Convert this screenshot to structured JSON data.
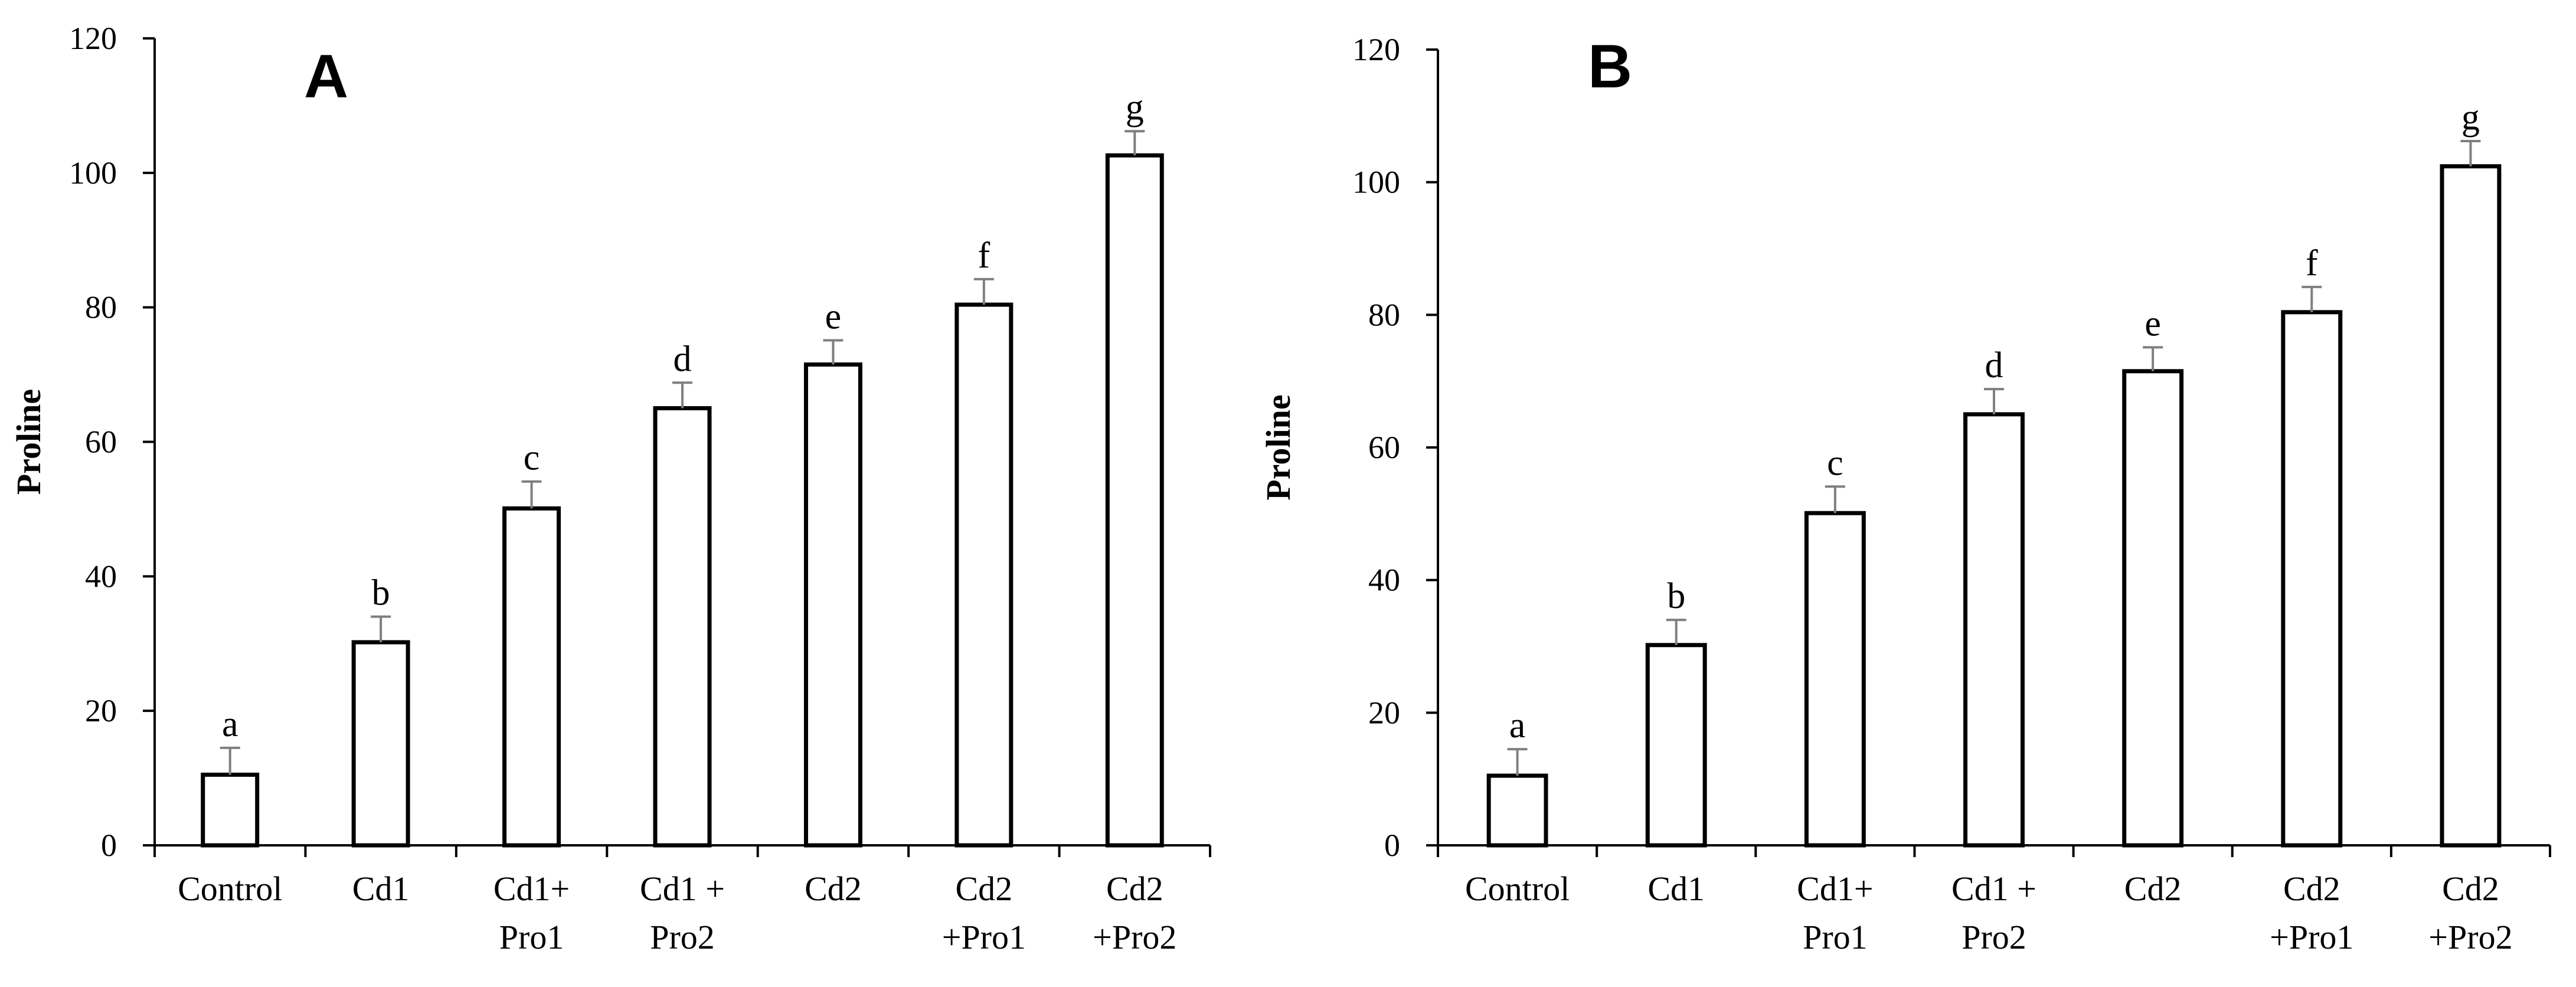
{
  "chart_data": [
    {
      "type": "bar",
      "panel_label": "A",
      "categories": [
        [
          "Control"
        ],
        [
          "Cd1"
        ],
        [
          "Cd1+",
          "Pro1"
        ],
        [
          "Cd1 +",
          "Pro2"
        ],
        [
          "Cd2"
        ],
        [
          "Cd2",
          "+Pro1"
        ],
        [
          "Cd2",
          "+Pro2"
        ]
      ],
      "values": [
        10.5,
        30.2,
        50.1,
        65.0,
        71.5,
        80.4,
        102.6
      ],
      "errors": [
        4,
        3.8,
        4,
        3.8,
        3.6,
        3.8,
        3.6
      ],
      "significance": [
        "a",
        "b",
        "c",
        "d",
        "e",
        "f",
        "g"
      ],
      "ylabel": "Proline",
      "xlabel": "",
      "ylim": [
        0,
        120
      ],
      "yticks": [
        0,
        20,
        40,
        60,
        80,
        100,
        120
      ],
      "grid": false,
      "colors": {
        "bar_fill": "#ffffff",
        "bar_stroke": "#000000",
        "error_bar": "#7f7f7f",
        "axis": "#000000"
      }
    },
    {
      "type": "bar",
      "panel_label": "B",
      "categories": [
        [
          "Control"
        ],
        [
          "Cd1"
        ],
        [
          "Cd1+",
          "Pro1"
        ],
        [
          "Cd1 +",
          "Pro2"
        ],
        [
          "Cd2"
        ],
        [
          "Cd2",
          "+Pro1"
        ],
        [
          "Cd2",
          "+Pro2"
        ]
      ],
      "values": [
        10.5,
        30.2,
        50.1,
        65.0,
        71.5,
        80.4,
        102.4
      ],
      "errors": [
        4,
        3.8,
        4,
        3.8,
        3.6,
        3.8,
        3.8
      ],
      "significance": [
        "a",
        "b",
        "c",
        "d",
        "e",
        "f",
        "g"
      ],
      "ylabel": "Proline",
      "xlabel": "",
      "ylim": [
        0,
        120
      ],
      "yticks": [
        0,
        20,
        40,
        60,
        80,
        100,
        120
      ],
      "grid": false,
      "colors": {
        "bar_fill": "#ffffff",
        "bar_stroke": "#000000",
        "error_bar": "#7f7f7f",
        "axis": "#000000"
      }
    }
  ]
}
